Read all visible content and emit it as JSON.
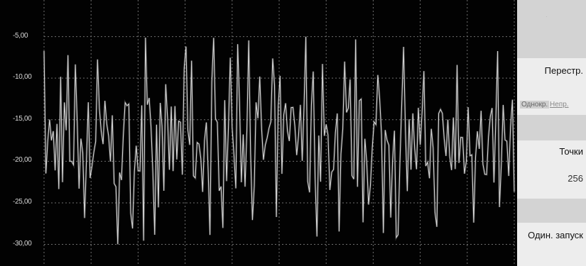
{
  "plot": {
    "background_color": "#020202",
    "grid_color": "#6e6e6e",
    "trace_color": "#d4d4d4",
    "glow_color": "#ffffff",
    "y_ticks": [
      "-5,00",
      "-10,00",
      "-15,00",
      "-20,00",
      "-25,00",
      "-30,00"
    ],
    "y_tick_values": [
      -5,
      -10,
      -15,
      -20,
      -25,
      -30
    ],
    "y_range": [
      -32.6,
      -0.6
    ],
    "grid_divisions_x": 10,
    "sweep_points": 256,
    "trace_seed": 7
  },
  "softkeys": {
    "sweep_label": "Перестр.",
    "option_a": "Однокр.",
    "option_b": "Непр.",
    "points_label": "Точки",
    "points_value": "256",
    "single_label": "Один. запуск"
  }
}
